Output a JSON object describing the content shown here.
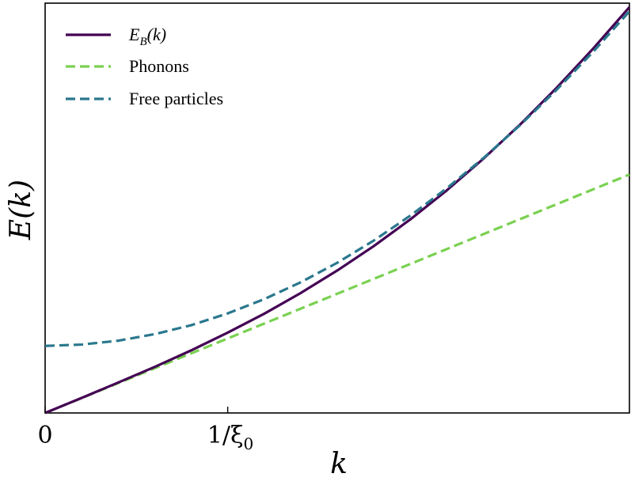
{
  "chart_data": {
    "type": "line",
    "xlabel": "k",
    "ylabel": "E(k)",
    "xlim": [
      0,
      3.2
    ],
    "ylim": [
      0,
      2.75
    ],
    "grid": false,
    "legend_position": "top-left",
    "xticks": [
      {
        "value": 0,
        "label": "0"
      },
      {
        "value": 1,
        "label": "1/ξ₀"
      }
    ],
    "series": [
      {
        "name": "E_B(k)",
        "style": "solid",
        "color": "#440154",
        "x": [
          0,
          0.2,
          0.4,
          0.6,
          0.8,
          1.0,
          1.2,
          1.4,
          1.6,
          1.8,
          2.0,
          2.2,
          2.4,
          2.6,
          2.8,
          3.0,
          3.2
        ],
        "y": [
          0,
          0.101,
          0.204,
          0.309,
          0.42,
          0.539,
          0.666,
          0.805,
          0.956,
          1.12,
          1.299,
          1.494,
          1.706,
          1.934,
          2.18,
          2.443,
          2.723
        ]
      },
      {
        "name": "Phonons",
        "style": "dashed",
        "color": "#7ad151",
        "x": [
          0,
          0.4,
          0.8,
          1.2,
          1.6,
          2.0,
          2.4,
          2.8,
          3.2
        ],
        "y": [
          0,
          0.2,
          0.4,
          0.6,
          0.8,
          1.0,
          1.2,
          1.4,
          1.6
        ]
      },
      {
        "name": "Free particles",
        "style": "dashed",
        "color": "#2a788e",
        "x": [
          0,
          0.2,
          0.4,
          0.6,
          0.8,
          1.0,
          1.2,
          1.4,
          1.6,
          1.8,
          2.0,
          2.2,
          2.4,
          2.6,
          2.8,
          3.0,
          3.2
        ],
        "y": [
          0.45,
          0.459,
          0.485,
          0.529,
          0.589,
          0.668,
          0.764,
          0.877,
          1.008,
          1.157,
          1.324,
          1.508,
          1.71,
          1.93,
          2.167,
          2.422,
          2.695
        ]
      }
    ]
  },
  "legend": {
    "items": [
      {
        "label": "E",
        "sub": "B",
        "suffix": "(k)",
        "color": "#440154",
        "style": "solid"
      },
      {
        "label": "Phonons",
        "color": "#7ad151",
        "style": "dashed"
      },
      {
        "label": "Free particles",
        "color": "#2a788e",
        "style": "dashed"
      }
    ]
  },
  "tick_labels": {
    "x0": "0",
    "x1_num": "1/ξ",
    "x1_sub": "0"
  },
  "axis_labels": {
    "x": "k",
    "y": "E(k)"
  }
}
